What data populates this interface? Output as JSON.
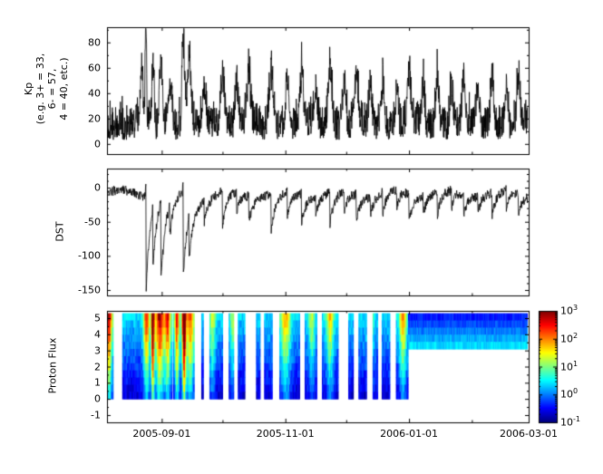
{
  "figure": {
    "bg": "#ffffff",
    "axis_color": "#000000",
    "series_color": "#000000"
  },
  "xaxis": {
    "start_date": "2005-08-05",
    "end_date": "2006-03-01",
    "total_days": 208,
    "major_ticks": [
      {
        "day": 27,
        "label": "2005-09-01"
      },
      {
        "day": 88,
        "label": "2005-11-01"
      },
      {
        "day": 149,
        "label": "2006-01-01"
      },
      {
        "day": 208,
        "label": "2006-03-01"
      }
    ],
    "minor_tick_days": [
      57,
      118,
      180
    ]
  },
  "chart_data": [
    {
      "id": "kp",
      "type": "line",
      "ylabel_lines": [
        "Kp",
        "(e.g. 3+ = 33,",
        "6- = 57,",
        "4 = 40, etc.)"
      ],
      "ylim": [
        -8,
        92
      ],
      "yticks": [
        0,
        20,
        40,
        60,
        80
      ],
      "minor_step": 10,
      "samples_per_day": 8,
      "seed": 1337,
      "noise": {
        "floor": 3,
        "amp1": 26,
        "pow1": 1.6,
        "amp2": 14,
        "pow2": 6,
        "rec_amp": 6,
        "rec_period": 27,
        "rec_phase": 10
      },
      "events": [
        {
          "day": 19.2,
          "peak": 100,
          "width": 0.45
        },
        {
          "day": 17.2,
          "peak": 45,
          "width": 0.9
        },
        {
          "day": 22.6,
          "peak": 52,
          "width": 0.8
        },
        {
          "day": 26.6,
          "peak": 60,
          "width": 0.9
        },
        {
          "day": 31.0,
          "peak": 42,
          "width": 1.4
        },
        {
          "day": 37.6,
          "peak": 72,
          "width": 0.9
        },
        {
          "day": 40.5,
          "peak": 58,
          "width": 1.3
        },
        {
          "day": 48,
          "peak": 35,
          "width": 1.2
        },
        {
          "day": 57,
          "peak": 46,
          "width": 1.4
        },
        {
          "day": 64,
          "peak": 38,
          "width": 1.1
        },
        {
          "day": 70,
          "peak": 42,
          "width": 1.2
        },
        {
          "day": 81,
          "peak": 48,
          "width": 1.5
        },
        {
          "day": 89,
          "peak": 42,
          "width": 1.2
        },
        {
          "day": 96,
          "peak": 40,
          "width": 1.2
        },
        {
          "day": 103,
          "peak": 36,
          "width": 1.1
        },
        {
          "day": 110,
          "peak": 46,
          "width": 1.4
        },
        {
          "day": 117,
          "peak": 38,
          "width": 1.1
        },
        {
          "day": 123,
          "peak": 42,
          "width": 1.2
        },
        {
          "day": 130,
          "peak": 36,
          "width": 1.1
        },
        {
          "day": 136,
          "peak": 40,
          "width": 1.2
        },
        {
          "day": 143,
          "peak": 34,
          "width": 1.0
        },
        {
          "day": 149,
          "peak": 44,
          "width": 1.3
        },
        {
          "day": 156,
          "peak": 36,
          "width": 1.0
        },
        {
          "day": 163,
          "peak": 42,
          "width": 1.2
        },
        {
          "day": 170,
          "peak": 36,
          "width": 1.0
        },
        {
          "day": 176,
          "peak": 40,
          "width": 1.1
        },
        {
          "day": 183,
          "peak": 34,
          "width": 1.0
        },
        {
          "day": 190,
          "peak": 42,
          "width": 1.2
        },
        {
          "day": 197,
          "peak": 36,
          "width": 1.0
        },
        {
          "day": 203,
          "peak": 40,
          "width": 1.1
        }
      ]
    },
    {
      "id": "dst",
      "type": "line",
      "ylabel": "DST",
      "ylim": [
        -158,
        28
      ],
      "yticks": [
        0,
        -50,
        -100,
        -150
      ],
      "minor_step": 10,
      "samples_per_day": 6,
      "seed": 2024,
      "noise": {
        "base": -8,
        "osc": 5,
        "period": 27,
        "rand": 7
      },
      "events": [
        {
          "day": 19.2,
          "depth": 148,
          "rec": 1.8
        },
        {
          "day": 22.6,
          "depth": 85,
          "rec": 2.2
        },
        {
          "day": 26.6,
          "depth": 112,
          "rec": 2.6
        },
        {
          "day": 31.0,
          "depth": 45,
          "rec": 2.0
        },
        {
          "day": 37.6,
          "depth": 122,
          "rec": 2.4
        },
        {
          "day": 40.5,
          "depth": 60,
          "rec": 3.0
        },
        {
          "day": 48,
          "depth": 30,
          "rec": 2.0
        },
        {
          "day": 57,
          "depth": 48,
          "rec": 2.5
        },
        {
          "day": 64,
          "depth": 30,
          "rec": 2.0
        },
        {
          "day": 70,
          "depth": 38,
          "rec": 2.2
        },
        {
          "day": 81,
          "depth": 52,
          "rec": 2.8
        },
        {
          "day": 89,
          "depth": 34,
          "rec": 2.0
        },
        {
          "day": 96,
          "depth": 40,
          "rec": 2.2
        },
        {
          "day": 103,
          "depth": 28,
          "rec": 1.8
        },
        {
          "day": 110,
          "depth": 46,
          "rec": 2.5
        },
        {
          "day": 117,
          "depth": 30,
          "rec": 1.8
        },
        {
          "day": 123,
          "depth": 36,
          "rec": 2.0
        },
        {
          "day": 130,
          "depth": 26,
          "rec": 1.8
        },
        {
          "day": 136,
          "depth": 32,
          "rec": 2.0
        },
        {
          "day": 143,
          "depth": 24,
          "rec": 1.6
        },
        {
          "day": 149,
          "depth": 38,
          "rec": 2.2
        },
        {
          "day": 156,
          "depth": 26,
          "rec": 1.6
        },
        {
          "day": 163,
          "depth": 34,
          "rec": 2.0
        },
        {
          "day": 170,
          "depth": 26,
          "rec": 1.6
        },
        {
          "day": 176,
          "depth": 30,
          "rec": 1.8
        },
        {
          "day": 183,
          "depth": 24,
          "rec": 1.5
        },
        {
          "day": 190,
          "depth": 34,
          "rec": 2.0
        },
        {
          "day": 197,
          "depth": 26,
          "rec": 1.6
        },
        {
          "day": 203,
          "depth": 30,
          "rec": 1.8
        }
      ]
    },
    {
      "id": "proton_flux",
      "type": "heatmap",
      "ylabel": "Proton Flux",
      "ylim": [
        -1.45,
        5.45
      ],
      "yticks": [
        5,
        4,
        3,
        2,
        1,
        0,
        -1
      ],
      "minor_step": 0.5,
      "value_range_log10": [
        -1,
        3
      ],
      "rows": 12,
      "row_extent": [
        0,
        5.3
      ],
      "cols_per_day": 2,
      "seed": 7,
      "background": {
        "top_value": -0.65,
        "bottom_value": 0.35,
        "noise": 0.22
      },
      "events": [
        {
          "day": 1,
          "width": 1.5,
          "strength": 2.6
        },
        {
          "day": 19.5,
          "width": 1.5,
          "strength": 2.2
        },
        {
          "day": 22.6,
          "width": 0.8,
          "strength": 3.4
        },
        {
          "day": 26,
          "width": 2.2,
          "strength": 2.6
        },
        {
          "day": 30,
          "width": 1.5,
          "strength": 2.2
        },
        {
          "day": 34.5,
          "width": 1.2,
          "strength": 2.4
        },
        {
          "day": 38,
          "width": 1.0,
          "strength": 3.8
        },
        {
          "day": 41,
          "width": 2.0,
          "strength": 2.0
        },
        {
          "day": 52,
          "width": 1.5,
          "strength": 1.1
        },
        {
          "day": 62,
          "width": 1.2,
          "strength": 0.9
        },
        {
          "day": 88,
          "width": 2.5,
          "strength": 1.5
        },
        {
          "day": 101,
          "width": 1.5,
          "strength": 1.0
        },
        {
          "day": 110,
          "width": 1.8,
          "strength": 1.4
        },
        {
          "day": 130,
          "width": 1.5,
          "strength": 0.9
        },
        {
          "day": 146,
          "width": 1.8,
          "strength": 1.6
        }
      ],
      "gaps": [
        [
          3.2,
          7.5
        ],
        [
          31.8,
          32.6
        ],
        [
          42.9,
          46.5
        ],
        [
          47.5,
          50.5
        ],
        [
          57,
          60
        ],
        [
          62.5,
          64.5
        ],
        [
          68,
          73.5
        ],
        [
          75.5,
          77.5
        ],
        [
          81.5,
          85
        ],
        [
          95,
          97.5
        ],
        [
          103.5,
          106
        ],
        [
          114,
          119
        ],
        [
          121.5,
          124
        ],
        [
          128,
          131
        ],
        [
          133.5,
          135.5
        ],
        [
          139.5,
          142.5
        ]
      ],
      "upper_band": {
        "start_day": 148.5,
        "y_from": 3.0,
        "bottom_value": 0.5,
        "top_value": -0.5,
        "noise": 0.15
      },
      "colorbar": {
        "base": "10",
        "tick_exponents": [
          "3",
          "2",
          "1",
          "0",
          "-1"
        ],
        "tick_labels": [
          "10^3",
          "10^2",
          "10^1",
          "10^0",
          "10^-1"
        ],
        "scale": "log",
        "range": [
          0.1,
          1000
        ],
        "colormap": "jet"
      }
    }
  ]
}
